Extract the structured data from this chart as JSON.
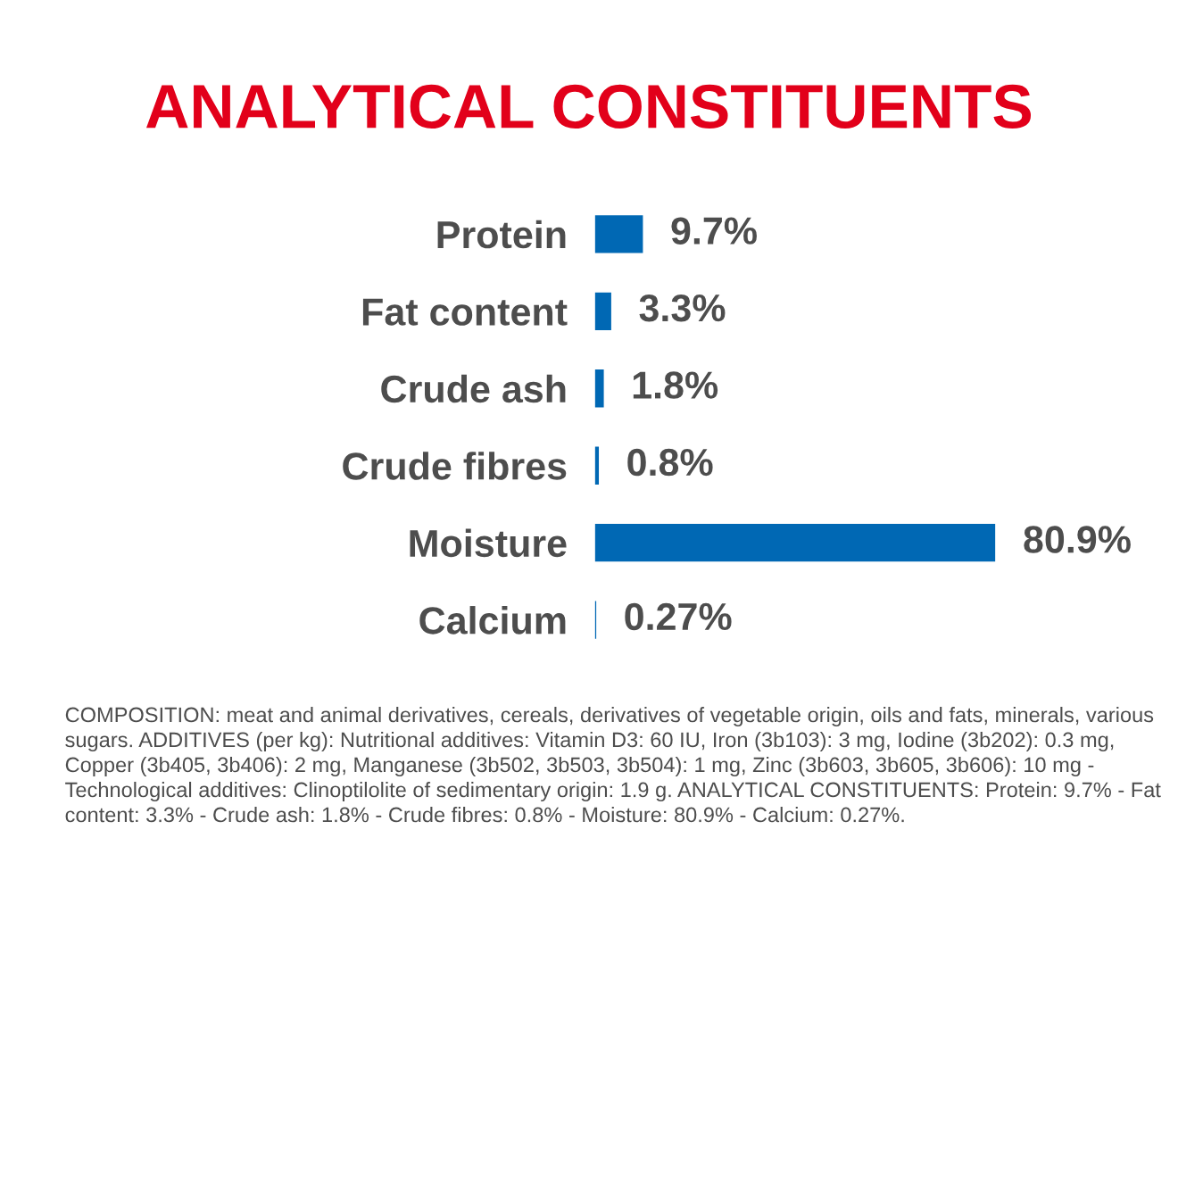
{
  "chart_data": {
    "type": "bar",
    "orientation": "horizontal",
    "title": "ANALYTICAL CONSTITUENTS",
    "categories": [
      "Protein",
      "Fat content",
      "Crude ash",
      "Crude fibres",
      "Moisture",
      "Calcium"
    ],
    "values": [
      9.7,
      3.3,
      1.8,
      0.8,
      80.9,
      0.27
    ],
    "value_labels": [
      "9.7%",
      "3.3%",
      "1.8%",
      "0.8%",
      "80.9%",
      "0.27%"
    ],
    "color": "#0068b4",
    "tick_labels": "y",
    "grid": false,
    "legend": false,
    "annotations": [
      "COMPOSITION: meat and animal derivatives, cereals, derivatives of vegetable origin, oils and fats, minerals, various sugars. ADDITIVES (per kg): Nutritional additives: Vitamin D3: 60 IU, Iron (3b103): 3 mg, Iodine (3b202): 0.3 mg, Copper (3b405, 3b406): 2 mg, Manganese (3b502, 3b503, 3b504): 1 mg, Zinc (3b603, 3b605, 3b606): 10 mg - Technological additives: Clinoptilolite of sedimentary origin: 1.9 g. ANALYTICAL CONSTITUENTS: Protein: 9.7% - Fat content: 3.3% - Crude ash: 1.8% - Crude fibres: 0.8% - Moisture: 80.9% - Calcium: 0.27%."
    ]
  }
}
